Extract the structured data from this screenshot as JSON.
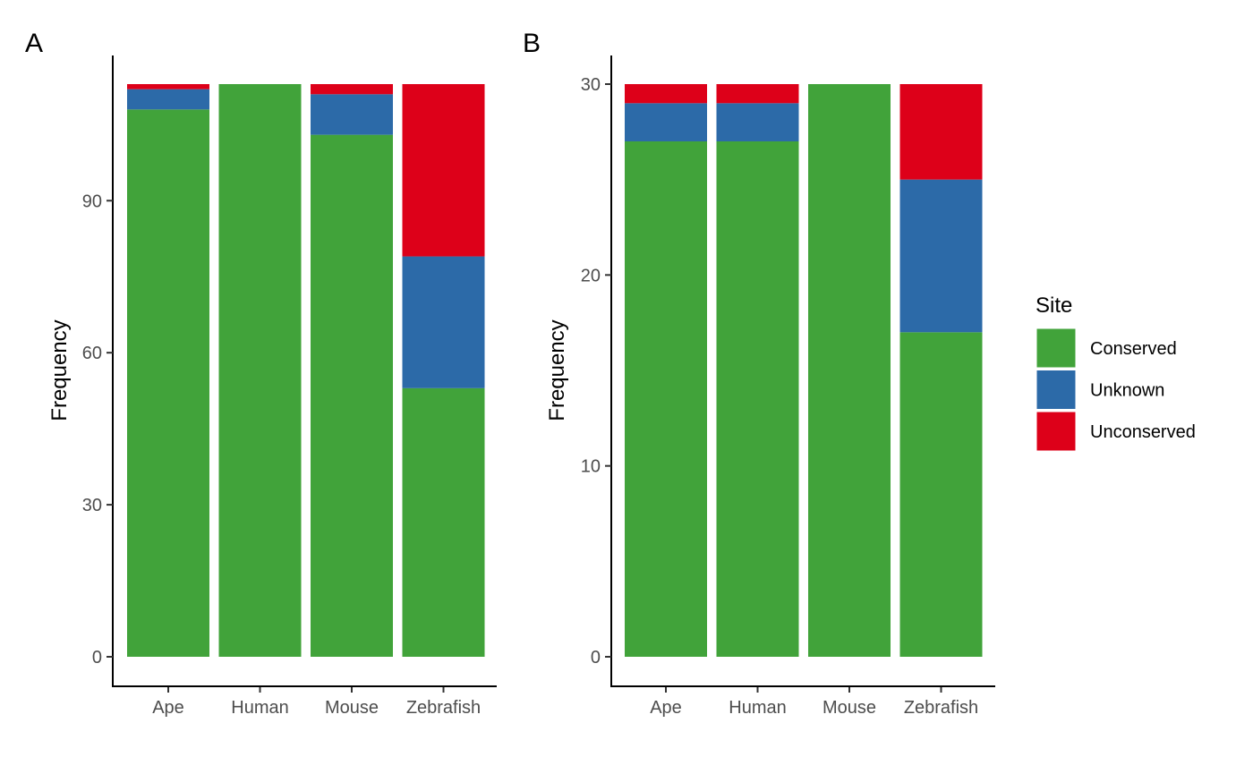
{
  "colors": {
    "Conserved": "#41a33a",
    "Unknown": "#2c6aa8",
    "Unconserved": "#dd0019"
  },
  "legend": {
    "title": "Site",
    "placement": "right",
    "items": [
      "Conserved",
      "Unknown",
      "Unconserved"
    ]
  },
  "chart_data": [
    {
      "panel": "A",
      "type": "bar",
      "stacked": true,
      "title": "",
      "xlabel": "",
      "ylabel": "Frequency",
      "ylim": [
        0,
        113
      ],
      "yticks": [
        0,
        30,
        60,
        90
      ],
      "categories": [
        "Ape",
        "Human",
        "Mouse",
        "Zebrafish"
      ],
      "series": [
        {
          "name": "Conserved",
          "values": [
            108,
            113,
            103,
            53
          ]
        },
        {
          "name": "Unknown",
          "values": [
            4,
            0,
            8,
            26
          ]
        },
        {
          "name": "Unconserved",
          "values": [
            1,
            0,
            2,
            34
          ]
        }
      ]
    },
    {
      "panel": "B",
      "type": "bar",
      "stacked": true,
      "title": "",
      "xlabel": "",
      "ylabel": "Frequency",
      "ylim": [
        0,
        30
      ],
      "yticks": [
        0,
        10,
        20,
        30
      ],
      "categories": [
        "Ape",
        "Human",
        "Mouse",
        "Zebrafish"
      ],
      "series": [
        {
          "name": "Conserved",
          "values": [
            27,
            27,
            30,
            17
          ]
        },
        {
          "name": "Unknown",
          "values": [
            2,
            2,
            0,
            8
          ]
        },
        {
          "name": "Unconserved",
          "values": [
            1,
            1,
            0,
            5
          ]
        }
      ]
    }
  ]
}
